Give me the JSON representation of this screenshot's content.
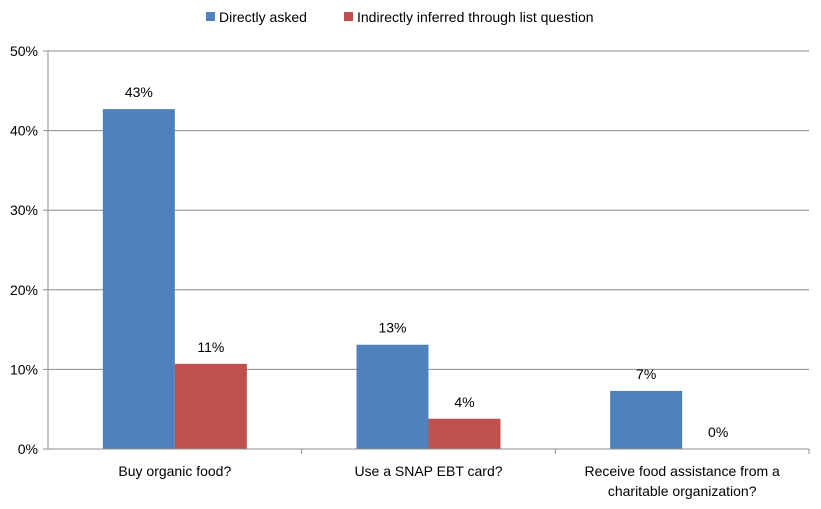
{
  "chart_data": {
    "type": "bar",
    "categories": [
      [
        "Buy organic food?"
      ],
      [
        "Use a SNAP EBT card?"
      ],
      [
        "Receive food assistance from a",
        "charitable organization?"
      ]
    ],
    "series": [
      {
        "name": "Directly asked",
        "color": "#4F81BD",
        "values": [
          42.7,
          13.1,
          7.3
        ],
        "labels": [
          "43%",
          "13%",
          "7%"
        ]
      },
      {
        "name": "Indirectly inferred through list question",
        "color": "#C0504D",
        "values": [
          10.7,
          3.8,
          0
        ],
        "labels": [
          "11%",
          "4%",
          "0%"
        ]
      }
    ],
    "y_ticks": [
      "0%",
      "10%",
      "20%",
      "30%",
      "40%",
      "50%"
    ],
    "ylim": [
      0,
      50
    ],
    "grid": true,
    "legend_position": "top"
  }
}
